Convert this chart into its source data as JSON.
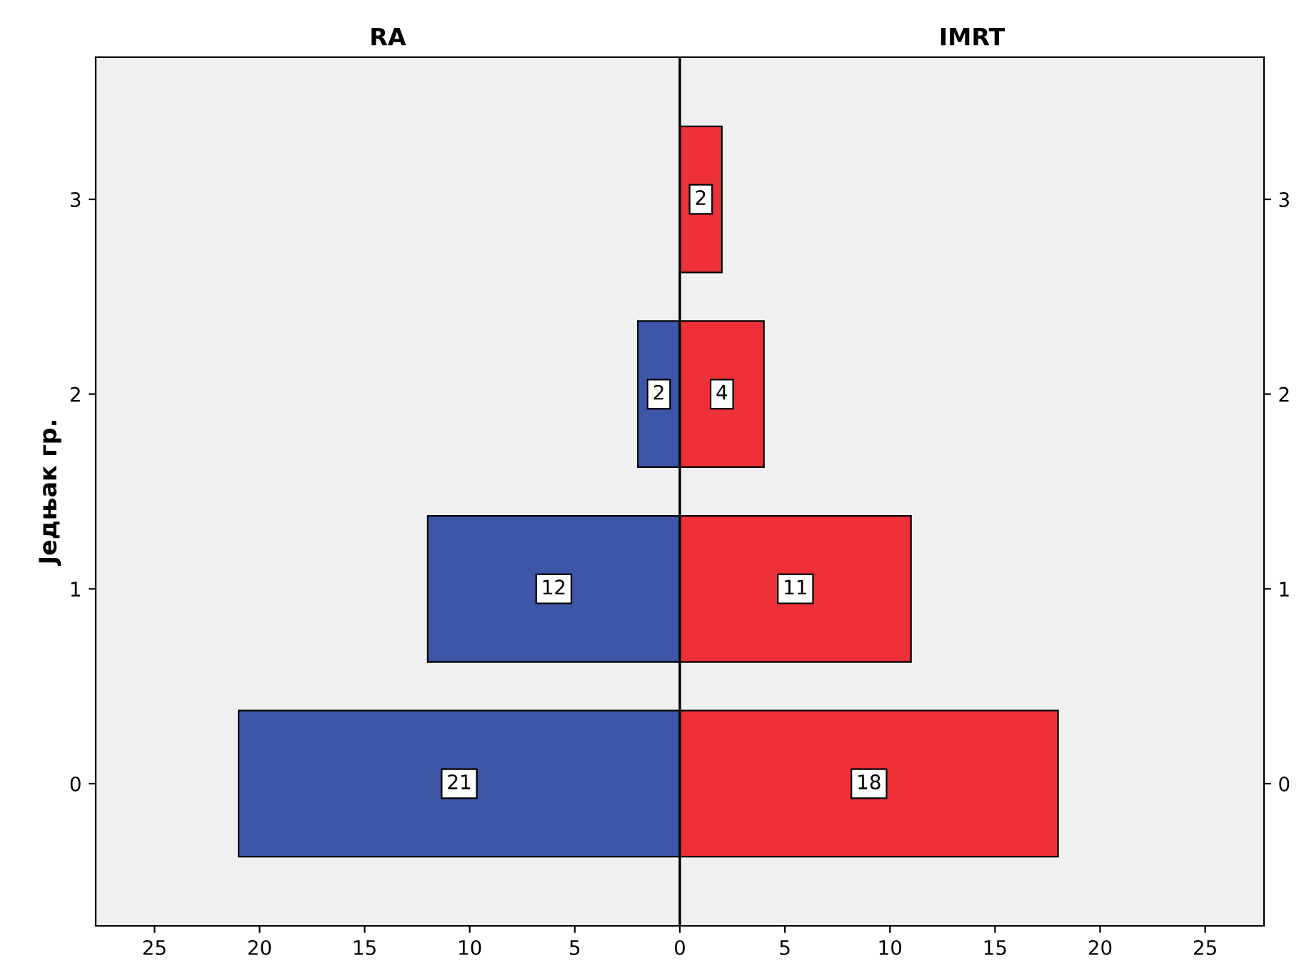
{
  "chart_data": [
    {
      "type": "bar",
      "orientation": "horizontal",
      "title": "RA",
      "ylabel": "Једњак гр.",
      "categories": [
        "3",
        "2",
        "1",
        "0"
      ],
      "series": [
        {
          "color": "#3d56a8",
          "values": [
            null,
            2,
            12,
            21
          ]
        }
      ],
      "xlim": [
        27.8,
        0
      ],
      "xticks": [
        25,
        20,
        15,
        10,
        5
      ],
      "data_labels": true,
      "grid": false,
      "legend": false
    },
    {
      "type": "bar",
      "orientation": "horizontal",
      "title": "IMRT",
      "categories": [
        "3",
        "2",
        "1",
        "0"
      ],
      "series": [
        {
          "color": "#ee3039",
          "values": [
            2,
            4,
            11,
            18
          ]
        }
      ],
      "xlim": [
        0,
        27.8
      ],
      "xticks": [
        0,
        5,
        10,
        15,
        20,
        25
      ],
      "data_labels": true,
      "grid": false,
      "legend": false
    }
  ]
}
